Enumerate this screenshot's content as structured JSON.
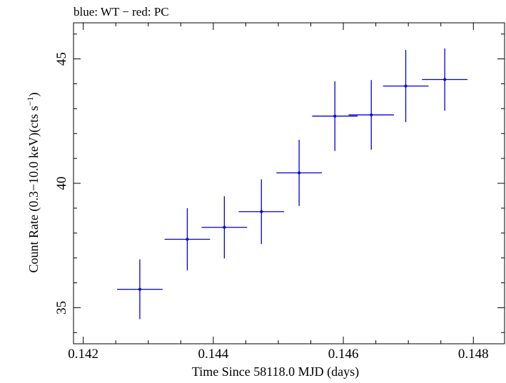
{
  "chart_data": {
    "type": "scatter",
    "title": "",
    "legend_text": "blue: WT − red: PC",
    "xlabel": "Time Since 58118.0 MJD (days)",
    "ylabel_main": "Count Rate (0.3−10.0 keV)(cts s",
    "ylabel_sup": "−1",
    "ylabel_end": ")",
    "xlim": [
      0.14185,
      0.14848
    ],
    "ylim": [
      33.55,
      46.45
    ],
    "xticks": [
      0.142,
      0.144,
      0.146,
      0.148
    ],
    "xtick_labels": [
      "0.142",
      "0.144",
      "0.146",
      "0.148"
    ],
    "yticks": [
      35,
      40,
      45
    ],
    "ytick_labels": [
      "35",
      "40",
      "45"
    ],
    "grid": false,
    "series": [
      {
        "color": "#0000dd",
        "points": [
          {
            "x": 0.14287,
            "y": 35.74,
            "xerr": 0.00035,
            "yerr": 1.2
          },
          {
            "x": 0.1436,
            "y": 37.75,
            "xerr": 0.00035,
            "yerr": 1.25
          },
          {
            "x": 0.14417,
            "y": 38.23,
            "xerr": 0.00035,
            "yerr": 1.25
          },
          {
            "x": 0.14474,
            "y": 38.86,
            "xerr": 0.00035,
            "yerr": 1.3
          },
          {
            "x": 0.14532,
            "y": 40.42,
            "xerr": 0.00035,
            "yerr": 1.33
          },
          {
            "x": 0.14587,
            "y": 42.7,
            "xerr": 0.00035,
            "yerr": 1.4
          },
          {
            "x": 0.14643,
            "y": 42.75,
            "xerr": 0.00035,
            "yerr": 1.4
          },
          {
            "x": 0.14696,
            "y": 43.91,
            "xerr": 0.00035,
            "yerr": 1.45
          },
          {
            "x": 0.14756,
            "y": 44.17,
            "xerr": 0.00035,
            "yerr": 1.25
          }
        ]
      }
    ]
  }
}
